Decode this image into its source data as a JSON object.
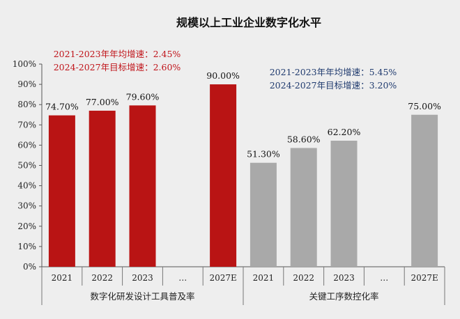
{
  "chart_data": {
    "type": "bar",
    "title": "规模以上工业企业数字化水平",
    "ylim": [
      0,
      100
    ],
    "yticks": [
      "0%",
      "10%",
      "20%",
      "30%",
      "40%",
      "50%",
      "60%",
      "70%",
      "80%",
      "90%",
      "100%"
    ],
    "categories": [
      "2021",
      "2022",
      "2023",
      "…",
      "2027E",
      "2021",
      "2022",
      "2023",
      "…",
      "2027E"
    ],
    "groups": [
      {
        "name": "数字化研发设计工具普及率",
        "color": "#b91414",
        "categories": [
          "2021",
          "2022",
          "2023",
          "…",
          "2027E"
        ],
        "values": [
          74.7,
          77.0,
          79.6,
          null,
          90.0
        ],
        "labels": [
          "74.70%",
          "77.00%",
          "79.60%",
          "",
          "90.00%"
        ],
        "annotations": [
          "2021-2023年年均增速：2.45%",
          "2024-2027年目标增速：2.60%"
        ],
        "annotation_color": "#c0141a"
      },
      {
        "name": "关键工序数控化率",
        "color": "#a9a9a9",
        "categories": [
          "2021",
          "2022",
          "2023",
          "…",
          "2027E"
        ],
        "values": [
          51.3,
          58.6,
          62.2,
          null,
          75.0
        ],
        "labels": [
          "51.30%",
          "58.60%",
          "62.20%",
          "",
          "75.00%"
        ],
        "annotations": [
          "2021-2023年年均增速：5.45%",
          "2024-2027年目标增速：3.20%"
        ],
        "annotation_color": "#1f3a6e"
      }
    ],
    "grid": false,
    "legend": "none"
  }
}
